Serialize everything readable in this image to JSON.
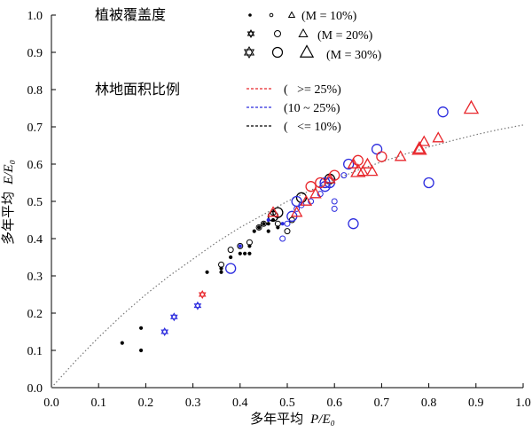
{
  "chart_data": {
    "type": "scatter",
    "xlabel_cn": "多年平均",
    "xlabel_var": "P/E₀",
    "ylabel_cn": "多年平均",
    "ylabel_var": "E/E₀",
    "xlim": [
      0.0,
      1.0
    ],
    "ylim": [
      0.0,
      1.0
    ],
    "xticks": [
      "0.0",
      "0.1",
      "0.2",
      "0.3",
      "0.4",
      "0.5",
      "0.6",
      "0.7",
      "0.8",
      "0.9",
      "1.0"
    ],
    "yticks": [
      "0.0",
      "0.1",
      "0.2",
      "0.3",
      "0.4",
      "0.5",
      "0.6",
      "0.7",
      "0.8",
      "0.9",
      "1.0"
    ],
    "grid": false,
    "legend_coverage": {
      "title": "植被覆盖度",
      "rows": [
        {
          "label": "(M = 10%)",
          "size": "small"
        },
        {
          "label": "(M = 20%)",
          "size": "medium"
        },
        {
          "label": "(M = 30%)",
          "size": "large"
        }
      ]
    },
    "legend_forest": {
      "title": "林地面积比例",
      "rows": [
        {
          "label": "(   >= 25%)",
          "color": "#e8262b"
        },
        {
          "label": "(10 ~ 25%)",
          "color": "#2b2bde"
        },
        {
          "label": "(   <= 10%)",
          "color": "#000000"
        }
      ]
    },
    "colors": {
      "high": "#e8262b",
      "mid": "#2b2bde",
      "low": "#000000",
      "curve": "#777777"
    },
    "curve_points": [
      [
        0,
        0
      ],
      [
        0.05,
        0.07
      ],
      [
        0.1,
        0.135
      ],
      [
        0.15,
        0.195
      ],
      [
        0.2,
        0.25
      ],
      [
        0.25,
        0.3
      ],
      [
        0.3,
        0.345
      ],
      [
        0.35,
        0.39
      ],
      [
        0.4,
        0.43
      ],
      [
        0.45,
        0.465
      ],
      [
        0.5,
        0.5
      ],
      [
        0.55,
        0.53
      ],
      [
        0.6,
        0.558
      ],
      [
        0.65,
        0.584
      ],
      [
        0.7,
        0.606
      ],
      [
        0.75,
        0.627
      ],
      [
        0.8,
        0.646
      ],
      [
        0.85,
        0.663
      ],
      [
        0.9,
        0.679
      ],
      [
        0.95,
        0.693
      ],
      [
        1.0,
        0.705
      ]
    ],
    "series": [
      {
        "forest": "low",
        "coverage": "small",
        "points": [
          [
            0.15,
            0.12
          ],
          [
            0.19,
            0.16
          ],
          [
            0.19,
            0.1
          ],
          [
            0.33,
            0.31
          ],
          [
            0.36,
            0.31
          ],
          [
            0.36,
            0.32
          ],
          [
            0.38,
            0.35
          ],
          [
            0.4,
            0.36
          ],
          [
            0.41,
            0.36
          ],
          [
            0.42,
            0.36
          ],
          [
            0.42,
            0.38
          ],
          [
            0.43,
            0.42
          ],
          [
            0.44,
            0.43
          ],
          [
            0.45,
            0.44
          ],
          [
            0.46,
            0.42
          ],
          [
            0.46,
            0.44
          ],
          [
            0.47,
            0.45
          ],
          [
            0.48,
            0.43
          ]
        ]
      },
      {
        "forest": "low",
        "coverage": "medium",
        "points": [
          [
            0.36,
            0.33
          ],
          [
            0.38,
            0.37
          ],
          [
            0.4,
            0.38
          ],
          [
            0.42,
            0.39
          ],
          [
            0.44,
            0.43
          ],
          [
            0.45,
            0.44
          ],
          [
            0.47,
            0.47
          ],
          [
            0.48,
            0.44
          ],
          [
            0.5,
            0.42
          ],
          [
            0.51,
            0.45
          ]
        ]
      },
      {
        "forest": "low",
        "coverage": "large",
        "points": [
          [
            0.47,
            0.46
          ],
          [
            0.48,
            0.47
          ],
          [
            0.53,
            0.51
          ],
          [
            0.59,
            0.56
          ]
        ]
      },
      {
        "forest": "mid",
        "coverage": "star",
        "points": [
          [
            0.24,
            0.15
          ],
          [
            0.26,
            0.19
          ],
          [
            0.31,
            0.22
          ]
        ]
      },
      {
        "forest": "mid",
        "coverage": "small",
        "points": [
          [
            0.4,
            0.38
          ],
          [
            0.46,
            0.45
          ],
          [
            0.49,
            0.44
          ]
        ]
      },
      {
        "forest": "mid",
        "coverage": "medium",
        "points": [
          [
            0.49,
            0.4
          ],
          [
            0.5,
            0.44
          ],
          [
            0.52,
            0.48
          ],
          [
            0.53,
            0.49
          ],
          [
            0.55,
            0.5
          ],
          [
            0.57,
            0.52
          ],
          [
            0.6,
            0.48
          ],
          [
            0.6,
            0.5
          ],
          [
            0.62,
            0.57
          ]
        ]
      },
      {
        "forest": "mid",
        "coverage": "large",
        "points": [
          [
            0.38,
            0.32
          ],
          [
            0.51,
            0.46
          ],
          [
            0.52,
            0.5
          ],
          [
            0.58,
            0.54
          ],
          [
            0.58,
            0.55
          ],
          [
            0.59,
            0.55
          ],
          [
            0.63,
            0.6
          ],
          [
            0.64,
            0.44
          ],
          [
            0.69,
            0.64
          ],
          [
            0.8,
            0.55
          ],
          [
            0.83,
            0.74
          ]
        ]
      },
      {
        "forest": "high",
        "coverage": "star",
        "points": [
          [
            0.32,
            0.25
          ]
        ]
      },
      {
        "forest": "high",
        "coverage": "triangle",
        "points": [
          [
            0.47,
            0.47
          ],
          [
            0.52,
            0.47
          ],
          [
            0.54,
            0.5
          ],
          [
            0.56,
            0.52
          ],
          [
            0.59,
            0.56
          ],
          [
            0.64,
            0.6
          ],
          [
            0.66,
            0.58
          ],
          [
            0.67,
            0.6
          ],
          [
            0.68,
            0.58
          ],
          [
            0.74,
            0.62
          ],
          [
            0.78,
            0.64
          ],
          [
            0.79,
            0.66
          ],
          [
            0.82,
            0.67
          ]
        ]
      },
      {
        "forest": "high",
        "coverage": "large_circle",
        "points": [
          [
            0.55,
            0.54
          ],
          [
            0.57,
            0.55
          ],
          [
            0.6,
            0.57
          ],
          [
            0.65,
            0.61
          ],
          [
            0.7,
            0.62
          ]
        ]
      },
      {
        "forest": "high",
        "coverage": "big_triangle",
        "points": [
          [
            0.89,
            0.75
          ],
          [
            0.78,
            0.64
          ],
          [
            0.65,
            0.58
          ]
        ]
      }
    ]
  }
}
